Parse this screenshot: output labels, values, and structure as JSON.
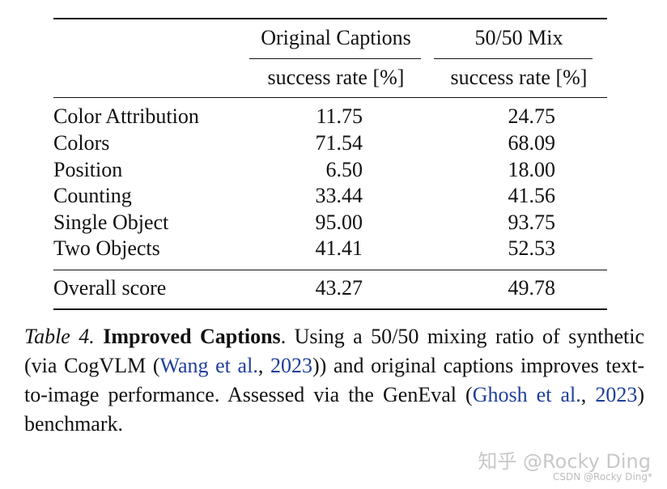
{
  "table": {
    "columns": [
      {
        "name": "Original Captions",
        "metric": "success rate [%]"
      },
      {
        "name": "50/50 Mix",
        "metric": "success rate [%]"
      }
    ],
    "rows": [
      {
        "label": "Color Attribution",
        "v1": "11.75",
        "v2": "24.75"
      },
      {
        "label": "Colors",
        "v1": "71.54",
        "v2": "68.09"
      },
      {
        "label": "Position",
        "v1": "6.50",
        "v2": "18.00"
      },
      {
        "label": "Counting",
        "v1": "33.44",
        "v2": "41.56"
      },
      {
        "label": "Single Object",
        "v1": "95.00",
        "v2": "93.75"
      },
      {
        "label": "Two Objects",
        "v1": "41.41",
        "v2": "52.53"
      }
    ],
    "overall": {
      "label": "Overall score",
      "v1": "43.27",
      "v2": "49.78"
    }
  },
  "caption": {
    "number": "Table 4.",
    "title": "Improved Captions",
    "text_a": ". Using a 50/50 mixing ratio of synthetic (via CogVLM (",
    "cite1_name": "Wang et al.",
    "cite1_year": "2023",
    "text_b": ")) and original captions improves text-to-image performance. Assessed via the GenEval (",
    "cite2_name": "Ghosh et al.",
    "cite2_year": "2023",
    "text_c": ") benchmark."
  },
  "watermark": {
    "main": "知乎 @Rocky Ding",
    "sub": "CSDN @Rocky Ding*"
  }
}
